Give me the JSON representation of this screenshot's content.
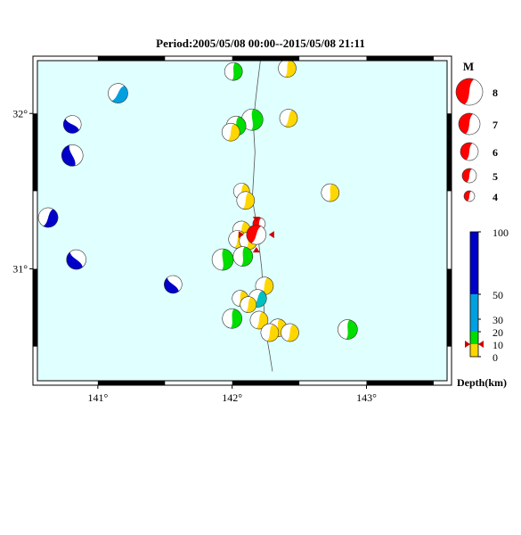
{
  "title": "Period:2005/05/08 00:00--2015/05/08 21:11",
  "map": {
    "lon_range": [
      140.55,
      143.6
    ],
    "lat_range": [
      30.28,
      32.34
    ],
    "lon_ticks": [
      {
        "value": 141,
        "label": "141°"
      },
      {
        "value": 142,
        "label": "142°"
      },
      {
        "value": 143,
        "label": "143°"
      }
    ],
    "lat_ticks": [
      {
        "value": 31,
        "label": "31°"
      },
      {
        "value": 32,
        "label": "32°"
      }
    ],
    "trench_line": [
      [
        142.21,
        32.34
      ],
      [
        142.19,
        32.2
      ],
      [
        142.17,
        32.05
      ],
      [
        142.16,
        31.9
      ],
      [
        142.17,
        31.75
      ],
      [
        142.16,
        31.6
      ],
      [
        142.15,
        31.45
      ],
      [
        142.18,
        31.3
      ],
      [
        142.2,
        31.15
      ],
      [
        142.22,
        31.0
      ],
      [
        142.23,
        30.85
      ],
      [
        142.24,
        30.7
      ],
      [
        142.26,
        30.55
      ],
      [
        142.28,
        30.45
      ],
      [
        142.3,
        30.34
      ]
    ],
    "land_color": "#e0ffff",
    "trench_color": "#555555"
  },
  "events": [
    {
      "lon": 142.01,
      "lat": 32.27,
      "color": "#00dd00",
      "size": 10,
      "rot": 10
    },
    {
      "lon": 142.41,
      "lat": 32.29,
      "color": "#ffd700",
      "size": 10,
      "rot": 15
    },
    {
      "lon": 141.15,
      "lat": 32.13,
      "color": "#00a0e0",
      "size": 11,
      "rot": 40
    },
    {
      "lon": 140.81,
      "lat": 31.93,
      "color": "#0000c8",
      "size": 10,
      "rot": 130
    },
    {
      "lon": 142.15,
      "lat": 31.96,
      "color": "#00dd00",
      "size": 12,
      "rot": 5
    },
    {
      "lon": 142.42,
      "lat": 31.97,
      "color": "#ffd700",
      "size": 10,
      "rot": 25
    },
    {
      "lon": 142.03,
      "lat": 31.92,
      "color": "#00dd00",
      "size": 11,
      "rot": 15
    },
    {
      "lon": 141.99,
      "lat": 31.88,
      "color": "#ffd700",
      "size": 10,
      "rot": 20
    },
    {
      "lon": 140.81,
      "lat": 31.73,
      "color": "#0000c8",
      "size": 12,
      "rot": 165
    },
    {
      "lon": 142.07,
      "lat": 31.5,
      "color": "#ffd700",
      "size": 9,
      "rot": 20
    },
    {
      "lon": 142.1,
      "lat": 31.44,
      "color": "#ffd700",
      "size": 10,
      "rot": 20
    },
    {
      "lon": 142.73,
      "lat": 31.49,
      "color": "#ffd700",
      "size": 10,
      "rot": 10
    },
    {
      "lon": 140.63,
      "lat": 31.33,
      "color": "#0000c8",
      "size": 11,
      "rot": 30
    },
    {
      "lon": 142.2,
      "lat": 31.29,
      "color": "#ff0000",
      "size": 7,
      "rot": 200
    },
    {
      "lon": 142.07,
      "lat": 31.25,
      "color": "#ffd700",
      "size": 10,
      "rot": 20
    },
    {
      "lon": 142.04,
      "lat": 31.19,
      "color": "#ffd700",
      "size": 10,
      "rot": 20
    },
    {
      "lon": 142.12,
      "lat": 31.18,
      "color": "#ffd700",
      "size": 10,
      "rot": 20
    },
    {
      "lon": 140.84,
      "lat": 31.06,
      "color": "#0000c8",
      "size": 11,
      "rot": 140
    },
    {
      "lon": 141.93,
      "lat": 31.06,
      "color": "#00dd00",
      "size": 12,
      "rot": 5
    },
    {
      "lon": 142.08,
      "lat": 31.08,
      "color": "#00dd00",
      "size": 11,
      "rot": 10
    },
    {
      "lon": 141.56,
      "lat": 30.9,
      "color": "#0000c8",
      "size": 10,
      "rot": 140
    },
    {
      "lon": 142.24,
      "lat": 30.89,
      "color": "#ffd700",
      "size": 10,
      "rot": 20
    },
    {
      "lon": 142.06,
      "lat": 30.81,
      "color": "#ffd700",
      "size": 9,
      "rot": 15
    },
    {
      "lon": 142.19,
      "lat": 30.81,
      "color": "#00c0c0",
      "size": 10,
      "rot": 30
    },
    {
      "lon": 142.12,
      "lat": 30.77,
      "color": "#ffd700",
      "size": 9,
      "rot": 20
    },
    {
      "lon": 142.0,
      "lat": 30.68,
      "color": "#00dd00",
      "size": 11,
      "rot": 10
    },
    {
      "lon": 142.2,
      "lat": 30.67,
      "color": "#ffd700",
      "size": 10,
      "rot": 20
    },
    {
      "lon": 142.34,
      "lat": 30.62,
      "color": "#ffd700",
      "size": 10,
      "rot": 10
    },
    {
      "lon": 142.28,
      "lat": 30.59,
      "color": "#ffd700",
      "size": 10,
      "rot": 20
    },
    {
      "lon": 142.43,
      "lat": 30.59,
      "color": "#ffd700",
      "size": 10,
      "rot": 20
    },
    {
      "lon": 142.86,
      "lat": 30.61,
      "color": "#00dd00",
      "size": 11,
      "rot": 10
    },
    {
      "lon": 142.18,
      "lat": 31.22,
      "color": "#ff0000",
      "size": 11,
      "rot": 210
    }
  ],
  "target_event": {
    "lon": 142.18,
    "lat": 31.22,
    "marker_color": "#cc0000"
  },
  "legend": {
    "magnitude_header": "M",
    "magnitudes": [
      {
        "label": "8",
        "size": 15
      },
      {
        "label": "7",
        "size": 12
      },
      {
        "label": "6",
        "size": 10
      },
      {
        "label": "5",
        "size": 8
      },
      {
        "label": "4",
        "size": 6
      }
    ],
    "depth_ticks": [
      {
        "value": 100,
        "label": "100"
      },
      {
        "value": 50,
        "label": "50"
      },
      {
        "value": 30,
        "label": "30"
      },
      {
        "value": 20,
        "label": "20"
      },
      {
        "value": 10,
        "label": "10"
      },
      {
        "value": 0,
        "label": "0"
      }
    ],
    "depth_bands": [
      {
        "from": 0,
        "to": 10,
        "color": "#ffd700"
      },
      {
        "from": 10,
        "to": 20,
        "color": "#00dd00"
      },
      {
        "from": 20,
        "to": 50,
        "color": "#00a0e0"
      },
      {
        "from": 50,
        "to": 100,
        "color": "#0000c8"
      }
    ],
    "depth_label": "Depth(km)",
    "current_depth": 10
  }
}
